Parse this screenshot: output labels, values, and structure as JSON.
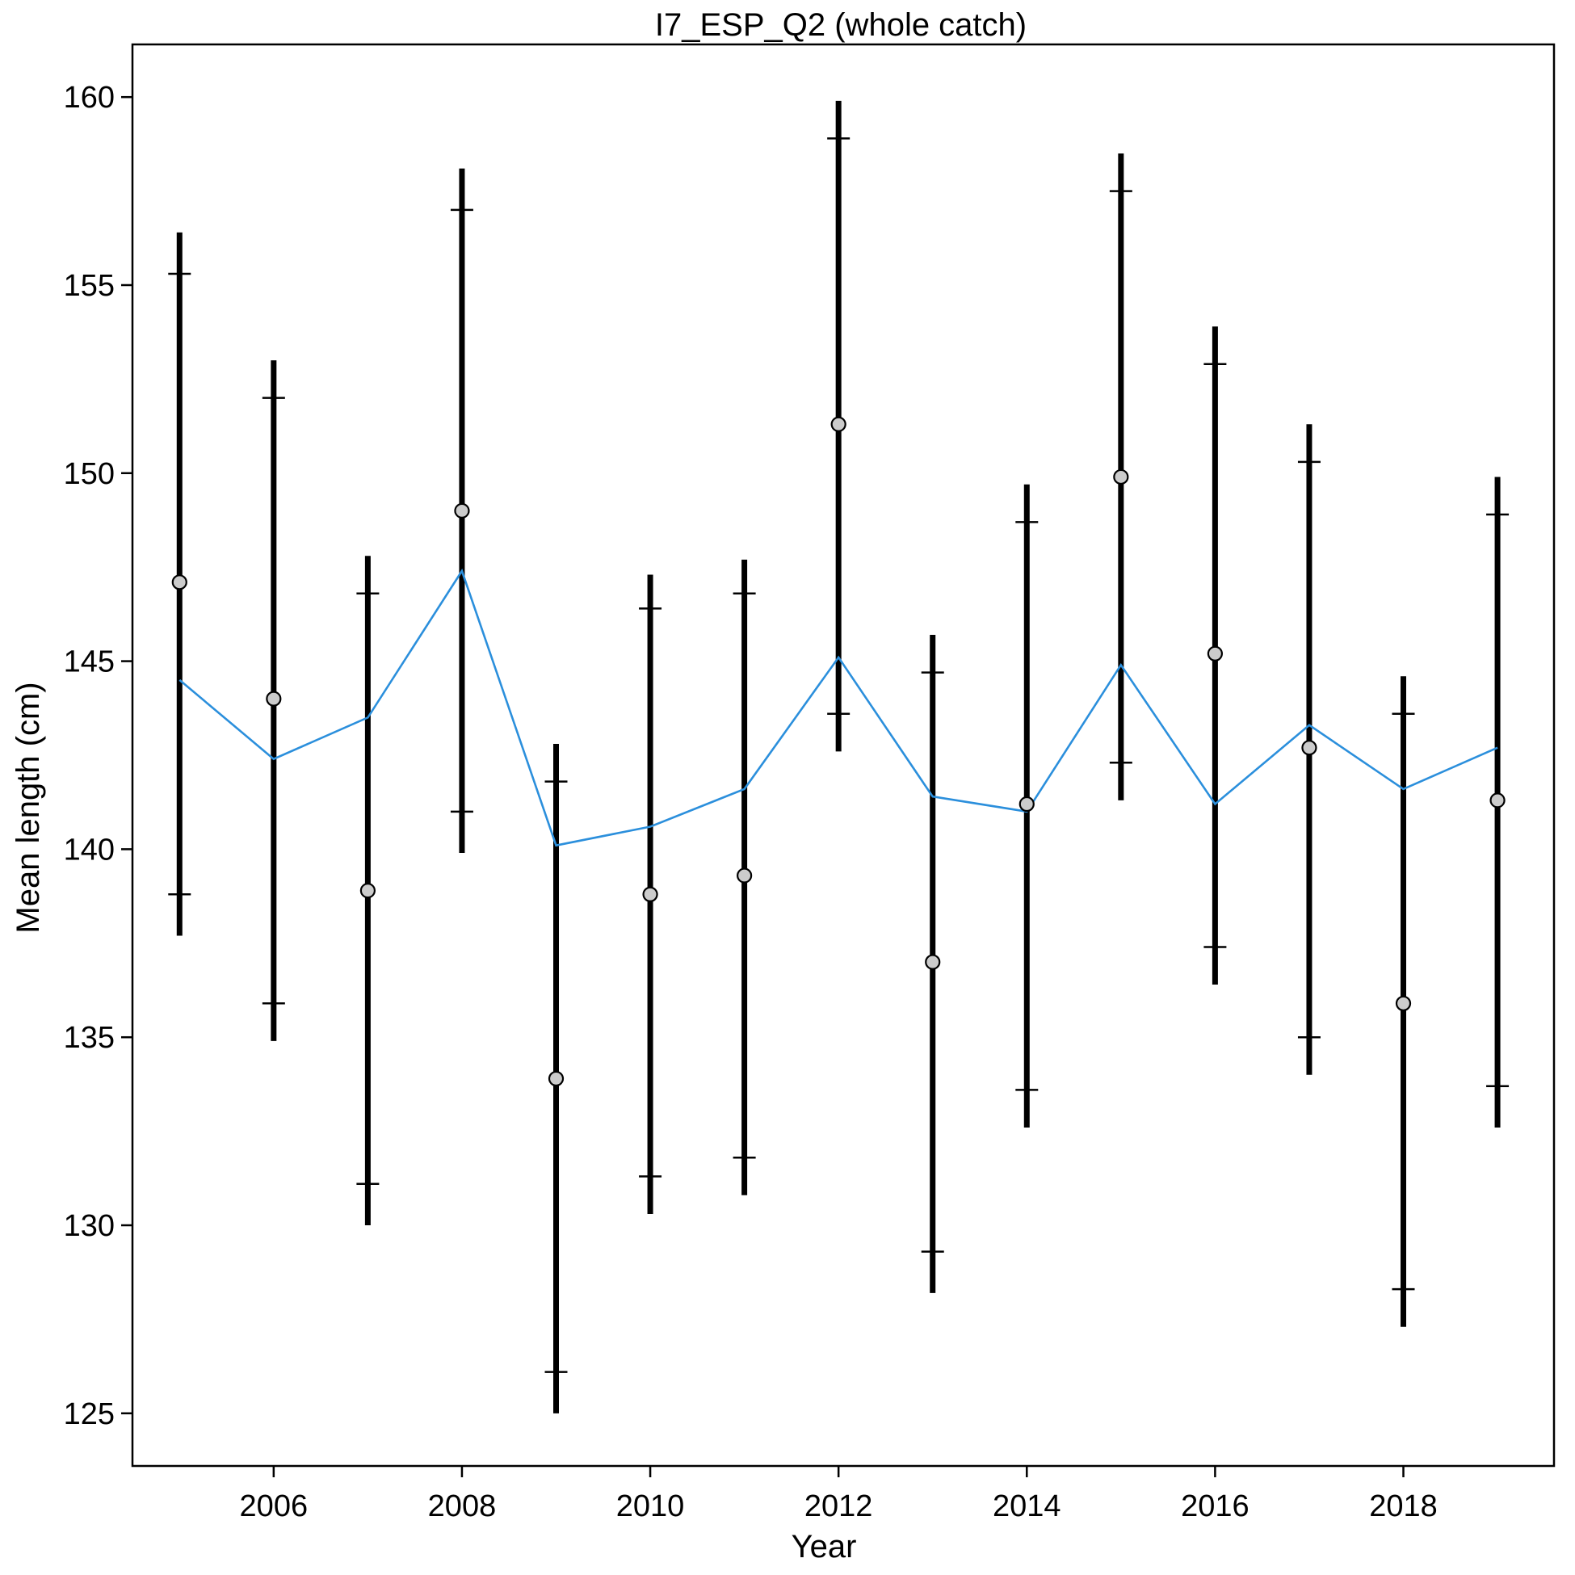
{
  "chart_data": {
    "type": "scatter",
    "title": "I7_ESP_Q2 (whole catch)",
    "xlabel": "Year",
    "ylabel": "Mean length (cm)",
    "xlim": [
      2004.5,
      2019.6
    ],
    "ylim": [
      123.6,
      161.4
    ],
    "xticks": [
      2006,
      2008,
      2010,
      2012,
      2014,
      2016,
      2018
    ],
    "xtick_labels": [
      "2006",
      "2008",
      "2010",
      "2012",
      "2014",
      "2016",
      "2018"
    ],
    "yticks": [
      125,
      130,
      135,
      140,
      145,
      150,
      155,
      160
    ],
    "ytick_labels": [
      "125",
      "130",
      "135",
      "140",
      "145",
      "150",
      "155",
      "160"
    ],
    "grid": false,
    "x": [
      2005,
      2006,
      2007,
      2008,
      2009,
      2010,
      2011,
      2012,
      2013,
      2014,
      2015,
      2016,
      2017,
      2018,
      2019
    ],
    "series": [
      {
        "kind": "observed",
        "values": [
          147.1,
          144.0,
          138.9,
          149.0,
          133.9,
          138.8,
          139.3,
          151.3,
          137.0,
          141.2,
          149.9,
          145.2,
          142.7,
          135.9,
          141.3
        ],
        "marker_color": "#cccccc",
        "outer_interval_lower": [
          137.7,
          134.9,
          130.0,
          139.9,
          125.0,
          130.3,
          130.8,
          142.6,
          128.2,
          132.6,
          141.3,
          136.4,
          134.0,
          127.3,
          132.6
        ],
        "outer_interval_upper": [
          156.4,
          153.0,
          147.8,
          158.1,
          142.8,
          147.3,
          147.7,
          159.9,
          145.7,
          149.7,
          158.5,
          153.9,
          151.3,
          144.6,
          149.9
        ],
        "inner_interval_lower": [
          138.8,
          135.9,
          131.1,
          141.0,
          126.1,
          131.3,
          131.8,
          143.6,
          129.3,
          133.6,
          142.3,
          137.4,
          135.0,
          128.3,
          133.7
        ],
        "inner_interval_upper": [
          155.3,
          152.0,
          146.8,
          157.0,
          141.8,
          146.4,
          146.8,
          158.9,
          144.7,
          148.7,
          157.5,
          152.9,
          150.3,
          143.6,
          148.9
        ]
      },
      {
        "kind": "expected",
        "values": [
          144.5,
          142.4,
          143.5,
          147.4,
          140.1,
          140.6,
          141.6,
          145.1,
          141.4,
          141.0,
          144.9,
          141.2,
          143.3,
          141.6,
          142.7
        ],
        "line_color": "#2b8fdc"
      }
    ]
  }
}
